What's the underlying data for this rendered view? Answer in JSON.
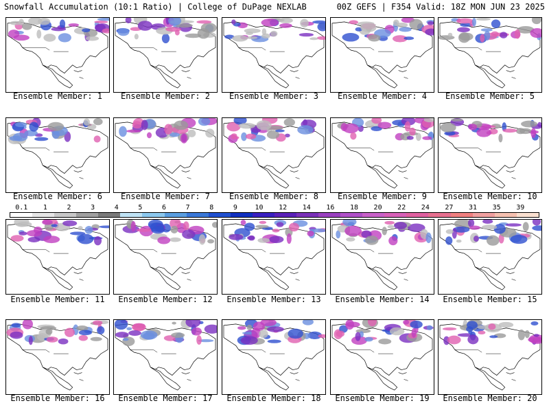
{
  "header": {
    "left": "Snowfall Accumulation (10:1 Ratio) | College of DuPage NEXLAB",
    "right": "00Z GEFS | F354 Valid: 18Z MON JUN 23 2025"
  },
  "members": [
    "Ensemble Member: 1",
    "Ensemble Member: 2",
    "Ensemble Member: 3",
    "Ensemble Member: 4",
    "Ensemble Member: 5",
    "Ensemble Member: 6",
    "Ensemble Member: 7",
    "Ensemble Member: 8",
    "Ensemble Member: 9",
    "Ensemble Member: 10",
    "Ensemble Member: 11",
    "Ensemble Member: 12",
    "Ensemble Member: 13",
    "Ensemble Member: 14",
    "Ensemble Member: 15",
    "Ensemble Member: 16",
    "Ensemble Member: 17",
    "Ensemble Member: 18",
    "Ensemble Member: 19",
    "Ensemble Member: 20"
  ],
  "legend": {
    "labels": [
      "0.1",
      "1",
      "2",
      "3",
      "4",
      "5",
      "6",
      "7",
      "8",
      "9",
      "10",
      "12",
      "14",
      "16",
      "18",
      "20",
      "22",
      "24",
      "27",
      "31",
      "35",
      "39"
    ],
    "colors": [
      "#ffffff",
      "#e6e6e6",
      "#c8c8c8",
      "#a0a0a0",
      "#7a7a7a",
      "#bfe3f5",
      "#8cc8ee",
      "#5a9ee0",
      "#3a78d8",
      "#2050d0",
      "#1030c0",
      "#3a20c0",
      "#5a20b8",
      "#7a30b8",
      "#9a40c0",
      "#b050c8",
      "#c860c8",
      "#d860b8",
      "#e060a0",
      "#e87090",
      "#f08080",
      "#f0a0a0",
      "#f5c0b0",
      "#fae0d0"
    ]
  }
}
